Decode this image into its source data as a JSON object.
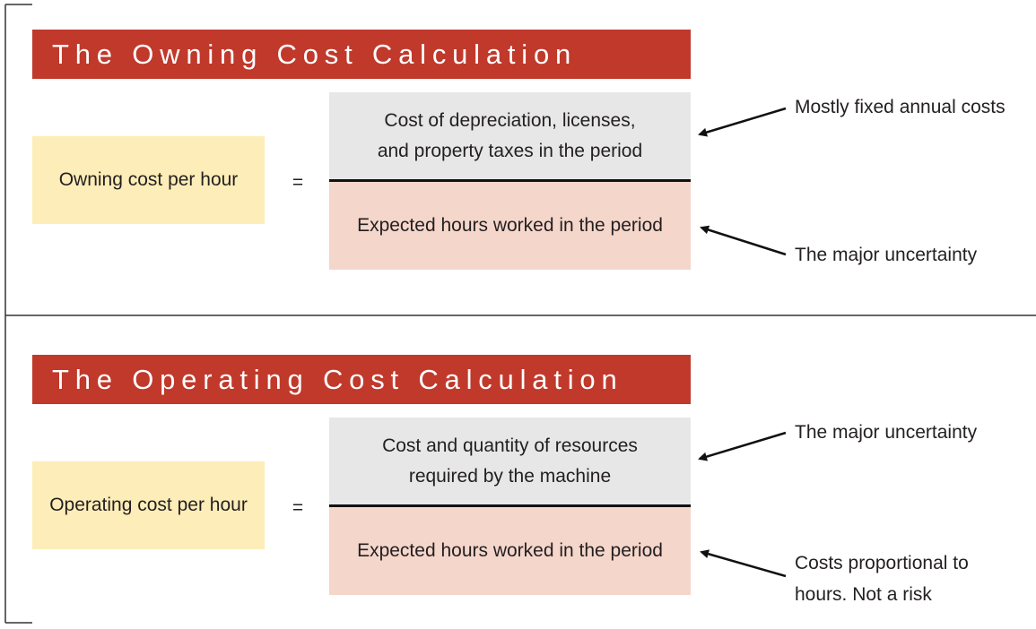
{
  "owning": {
    "title": "The Owning Cost Calculation",
    "lhs": "Owning cost per hour",
    "equals": "=",
    "numerator_line1": "Cost of depreciation, licenses,",
    "numerator_line2": "and property taxes in the period",
    "denominator": "Expected hours worked in the period",
    "note_numerator": "Mostly fixed annual costs",
    "note_denominator": "The major uncertainty"
  },
  "operating": {
    "title": "The Operating Cost Calculation",
    "lhs": "Operating cost per hour",
    "equals": "=",
    "numerator_line1": "Cost and quantity of resources",
    "numerator_line2": "required by the machine",
    "denominator": "Expected hours worked in the period",
    "note_numerator": "The major uncertainty",
    "note_denominator_line1": "Costs proportional to",
    "note_denominator_line2": "hours. Not a risk"
  },
  "colors": {
    "banner": "#c0392b",
    "lhs_box": "#fdedb8",
    "numerator_box": "#e6e7e6",
    "denominator_box": "#f4d6cb"
  }
}
